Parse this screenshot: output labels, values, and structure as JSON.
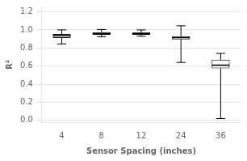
{
  "chart_data": {
    "type": "box",
    "categories": [
      "4",
      "8",
      "12",
      "24",
      "36"
    ],
    "values": [
      {
        "whislo": 0.845,
        "q1": 0.91,
        "med": 0.935,
        "q3": 0.955,
        "whishi": 1.0
      },
      {
        "whislo": 0.925,
        "q1": 0.945,
        "med": 0.96,
        "q3": 0.975,
        "whishi": 1.005
      },
      {
        "whislo": 0.93,
        "q1": 0.945,
        "med": 0.96,
        "q3": 0.97,
        "whishi": 1.0
      },
      {
        "whislo": 0.64,
        "q1": 0.895,
        "med": 0.915,
        "q3": 0.93,
        "whishi": 1.045
      },
      {
        "whislo": 0.02,
        "q1": 0.575,
        "med": 0.61,
        "q3": 0.67,
        "whishi": 0.74
      }
    ],
    "color": "black",
    "xlabel": "Sensor Spacing (inches)",
    "ylabel": "R²",
    "ylim": [
      -0.02,
      1.25
    ],
    "yticks": [
      {
        "value": 0.0,
        "label": "0.0"
      },
      0.2,
      0.4,
      0.6,
      0.8,
      {
        "value": 1.0,
        "label": "1.0"
      },
      1.2
    ],
    "grid": true
  }
}
